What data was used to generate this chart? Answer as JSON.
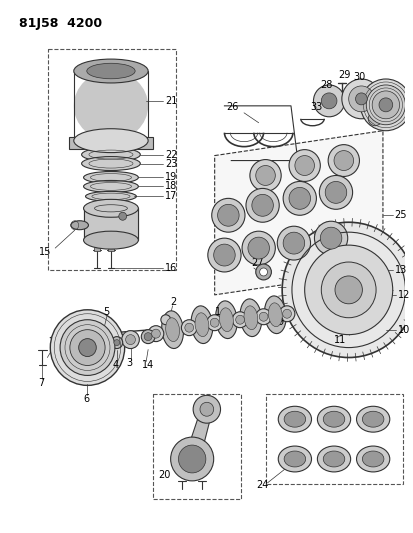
{
  "title": "81J58 4200",
  "bg_color": "#ffffff",
  "line_color": "#333333",
  "fig_width": 4.13,
  "fig_height": 5.33,
  "dpi": 100
}
